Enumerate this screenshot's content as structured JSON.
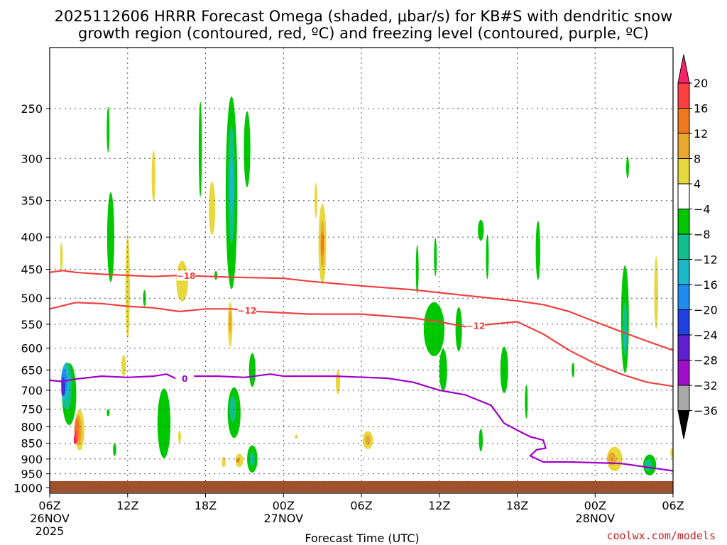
{
  "chart_data": {
    "type": "heatmap",
    "title_line1": "2025112606 HRRR Forecast Omega (shaded, μbar/s) for KB#S with dendritic snow",
    "title_line2": "growth region (contoured, red, ºC) and freezing level (contoured, purple, ºC)",
    "xlabel": "Forecast Time (UTC)",
    "credit": "coolwx.com/models",
    "x_ticks": [
      {
        "h": 0,
        "label": "06Z",
        "date": "26NOV",
        "year": "2025"
      },
      {
        "h": 6,
        "label": "12Z"
      },
      {
        "h": 12,
        "label": "18Z"
      },
      {
        "h": 18,
        "label": "00Z",
        "date": "27NOV"
      },
      {
        "h": 24,
        "label": "06Z"
      },
      {
        "h": 30,
        "label": "12Z"
      },
      {
        "h": 36,
        "label": "18Z"
      },
      {
        "h": 42,
        "label": "00Z",
        "date": "28NOV"
      },
      {
        "h": 48,
        "label": "06Z"
      }
    ],
    "xlim_hours": [
      0,
      48
    ],
    "y_ticks": [
      250,
      300,
      350,
      400,
      450,
      500,
      550,
      600,
      650,
      700,
      750,
      800,
      850,
      900,
      950,
      1000
    ],
    "ylim_hpa": [
      1020,
      200
    ],
    "colorbar": {
      "labels": [
        "20",
        "16",
        "12",
        "8",
        "4",
        "−4",
        "−8",
        "−12",
        "−16",
        "−20",
        "−24",
        "−28",
        "−32",
        "−36"
      ],
      "colors": [
        "#ff1f6b",
        "#ff4040",
        "#f07820",
        "#e8a830",
        "#e8d840",
        "#ffffff",
        "#00c800",
        "#10c08c",
        "#1ab8c8",
        "#1e8cf0",
        "#2040e0",
        "#6020d0",
        "#a010c8",
        "#a8a8a8",
        "#000000"
      ]
    },
    "shading": [
      {
        "c": "#00c800",
        "x": 1.5,
        "p": 710,
        "w": 1.1,
        "hp": 160
      },
      {
        "c": "#10c08c",
        "x": 1.3,
        "p": 690,
        "w": 0.8,
        "hp": 120
      },
      {
        "c": "#1ab8c8",
        "x": 1.2,
        "p": 680,
        "w": 0.6,
        "hp": 90
      },
      {
        "c": "#1e8cf0",
        "x": 1.1,
        "p": 680,
        "w": 0.45,
        "hp": 70
      },
      {
        "c": "#2040e0",
        "x": 1.05,
        "p": 690,
        "w": 0.3,
        "hp": 45
      },
      {
        "c": "#6020d0",
        "x": 1.0,
        "p": 700,
        "w": 0.2,
        "hp": 30
      },
      {
        "c": "#e8d840",
        "x": 2.3,
        "p": 810,
        "w": 0.75,
        "hp": 120
      },
      {
        "c": "#e8a830",
        "x": 2.2,
        "p": 810,
        "w": 0.55,
        "hp": 90
      },
      {
        "c": "#f07820",
        "x": 2.1,
        "p": 810,
        "w": 0.4,
        "hp": 70
      },
      {
        "c": "#ff4040",
        "x": 2.0,
        "p": 830,
        "w": 0.22,
        "hp": 45
      },
      {
        "c": "#ff1f6b",
        "x": 1.95,
        "p": 840,
        "w": 0.12,
        "hp": 25
      },
      {
        "c": "#e8d840",
        "x": 0.9,
        "p": 430,
        "w": 0.2,
        "hp": 45
      },
      {
        "c": "#00c800",
        "x": 4.7,
        "p": 400,
        "w": 0.55,
        "hp": 130
      },
      {
        "c": "#00c800",
        "x": 4.5,
        "p": 270,
        "w": 0.12,
        "hp": 45
      },
      {
        "c": "#e8d840",
        "x": 6.0,
        "p": 480,
        "w": 0.35,
        "hp": 180
      },
      {
        "c": "#e8d840",
        "x": 5.7,
        "p": 640,
        "w": 0.35,
        "hp": 50
      },
      {
        "c": "#00c800",
        "x": 4.5,
        "p": 760,
        "w": 0.15,
        "hp": 20
      },
      {
        "c": "#00c800",
        "x": 5.0,
        "p": 870,
        "w": 0.25,
        "hp": 40
      },
      {
        "c": "#00c800",
        "x": 7.3,
        "p": 500,
        "w": 0.08,
        "hp": 30
      },
      {
        "c": "#e8d840",
        "x": 8.0,
        "p": 320,
        "w": 0.3,
        "hp": 60
      },
      {
        "c": "#00c800",
        "x": 8.8,
        "p": 790,
        "w": 1.0,
        "hp": 200
      },
      {
        "c": "#e8d840",
        "x": 10.2,
        "p": 470,
        "w": 0.9,
        "hp": 70
      },
      {
        "c": "#e8d840",
        "x": 10.0,
        "p": 830,
        "w": 0.2,
        "hp": 40
      },
      {
        "c": "#00c800",
        "x": 11.6,
        "p": 290,
        "w": 0.25,
        "hp": 100
      },
      {
        "c": "#e8d840",
        "x": 12.5,
        "p": 360,
        "w": 0.5,
        "hp": 70
      },
      {
        "c": "#00c800",
        "x": 12.8,
        "p": 460,
        "w": 0.08,
        "hp": 15
      },
      {
        "c": "#00c800",
        "x": 14.0,
        "p": 340,
        "w": 0.9,
        "hp": 230
      },
      {
        "c": "#10c08c",
        "x": 14.0,
        "p": 330,
        "w": 0.5,
        "hp": 140
      },
      {
        "c": "#1ab8c8",
        "x": 14.0,
        "p": 330,
        "w": 0.25,
        "hp": 70
      },
      {
        "c": "#00c800",
        "x": 15.2,
        "p": 290,
        "w": 0.5,
        "hp": 80
      },
      {
        "c": "#e8d840",
        "x": 13.9,
        "p": 550,
        "w": 0.35,
        "hp": 90
      },
      {
        "c": "#e8a830",
        "x": 13.9,
        "p": 545,
        "w": 0.15,
        "hp": 45
      },
      {
        "c": "#00c800",
        "x": 14.2,
        "p": 760,
        "w": 1.0,
        "hp": 140
      },
      {
        "c": "#10c08c",
        "x": 14.1,
        "p": 750,
        "w": 0.5,
        "hp": 70
      },
      {
        "c": "#00c800",
        "x": 15.6,
        "p": 650,
        "w": 0.5,
        "hp": 80
      },
      {
        "c": "#00c800",
        "x": 15.6,
        "p": 900,
        "w": 0.8,
        "hp": 90
      },
      {
        "c": "#10c08c",
        "x": 15.6,
        "p": 900,
        "w": 0.4,
        "hp": 45
      },
      {
        "c": "#e8d840",
        "x": 13.4,
        "p": 910,
        "w": 0.3,
        "hp": 35
      },
      {
        "c": "#e8d840",
        "x": 14.6,
        "p": 905,
        "w": 0.6,
        "hp": 45
      },
      {
        "c": "#f07820",
        "x": 14.5,
        "p": 905,
        "w": 0.12,
        "hp": 15
      },
      {
        "c": "#e8d840",
        "x": 20.5,
        "p": 350,
        "w": 0.15,
        "hp": 45
      },
      {
        "c": "#e8d840",
        "x": 21.0,
        "p": 410,
        "w": 0.6,
        "hp": 120
      },
      {
        "c": "#e8a830",
        "x": 21.0,
        "p": 410,
        "w": 0.3,
        "hp": 70
      },
      {
        "c": "#f07820",
        "x": 21.0,
        "p": 410,
        "w": 0.13,
        "hp": 35
      },
      {
        "c": "#e8d840",
        "x": 22.2,
        "p": 680,
        "w": 0.35,
        "hp": 60
      },
      {
        "c": "#e8d840",
        "x": 19.0,
        "p": 830,
        "w": 0.08,
        "hp": 12
      },
      {
        "c": "#e8d840",
        "x": 24.5,
        "p": 840,
        "w": 0.8,
        "hp": 55
      },
      {
        "c": "#e8a830",
        "x": 24.5,
        "p": 840,
        "w": 0.4,
        "hp": 30
      },
      {
        "c": "#00c800",
        "x": 28.3,
        "p": 450,
        "w": 0.2,
        "hp": 80
      },
      {
        "c": "#00c800",
        "x": 29.6,
        "p": 560,
        "w": 1.6,
        "hp": 110
      },
      {
        "c": "#00c800",
        "x": 29.7,
        "p": 430,
        "w": 0.2,
        "hp": 60
      },
      {
        "c": "#00c800",
        "x": 30.3,
        "p": 650,
        "w": 0.6,
        "hp": 100
      },
      {
        "c": "#00c800",
        "x": 31.5,
        "p": 560,
        "w": 0.5,
        "hp": 90
      },
      {
        "c": "#00c800",
        "x": 33.2,
        "p": 390,
        "w": 0.45,
        "hp": 30
      },
      {
        "c": "#00c800",
        "x": 33.7,
        "p": 430,
        "w": 0.2,
        "hp": 70
      },
      {
        "c": "#00c800",
        "x": 33.2,
        "p": 840,
        "w": 0.3,
        "hp": 70
      },
      {
        "c": "#00c800",
        "x": 35.0,
        "p": 650,
        "w": 0.6,
        "hp": 110
      },
      {
        "c": "#00c800",
        "x": 36.7,
        "p": 730,
        "w": 0.2,
        "hp": 90
      },
      {
        "c": "#00c800",
        "x": 37.6,
        "p": 420,
        "w": 0.35,
        "hp": 90
      },
      {
        "c": "#00c800",
        "x": 40.3,
        "p": 650,
        "w": 0.12,
        "hp": 35
      },
      {
        "c": "#00c800",
        "x": 44.5,
        "p": 310,
        "w": 0.15,
        "hp": 25
      },
      {
        "c": "#00c800",
        "x": 44.3,
        "p": 540,
        "w": 0.6,
        "hp": 210
      },
      {
        "c": "#10c08c",
        "x": 44.3,
        "p": 560,
        "w": 0.35,
        "hp": 110
      },
      {
        "c": "#1ab8c8",
        "x": 44.3,
        "p": 580,
        "w": 0.15,
        "hp": 45
      },
      {
        "c": "#e8d840",
        "x": 46.7,
        "p": 490,
        "w": 0.3,
        "hp": 130
      },
      {
        "c": "#e8d840",
        "x": 43.5,
        "p": 900,
        "w": 1.2,
        "hp": 80
      },
      {
        "c": "#e8a830",
        "x": 43.3,
        "p": 900,
        "w": 0.6,
        "hp": 45
      },
      {
        "c": "#00c800",
        "x": 46.2,
        "p": 920,
        "w": 1.0,
        "hp": 70
      },
      {
        "c": "#10c08c",
        "x": 46.1,
        "p": 920,
        "w": 0.55,
        "hp": 40
      },
      {
        "c": "#e8d840",
        "x": 47.9,
        "p": 880,
        "w": 0.2,
        "hp": 30
      }
    ],
    "contours": [
      {
        "label": "−18",
        "color": "#f04040",
        "label_at": 10.5,
        "points": [
          [
            0,
            455
          ],
          [
            1,
            452
          ],
          [
            2,
            455
          ],
          [
            4,
            458
          ],
          [
            6,
            460
          ],
          [
            8,
            462
          ],
          [
            10,
            460
          ],
          [
            14,
            463
          ],
          [
            18,
            465
          ],
          [
            20,
            470
          ],
          [
            24,
            478
          ],
          [
            28,
            485
          ],
          [
            32,
            495
          ],
          [
            36,
            505
          ],
          [
            38,
            512
          ],
          [
            40,
            525
          ],
          [
            42,
            545
          ],
          [
            44,
            565
          ],
          [
            46,
            585
          ],
          [
            48,
            605
          ]
        ]
      },
      {
        "label": "−12",
        "color": "#f04040",
        "label_at": 15.2,
        "points": [
          [
            0,
            520
          ],
          [
            2,
            508
          ],
          [
            4,
            510
          ],
          [
            6,
            515
          ],
          [
            8,
            518
          ],
          [
            10,
            525
          ],
          [
            12,
            520
          ],
          [
            14,
            520
          ],
          [
            16,
            525
          ],
          [
            20,
            530
          ],
          [
            24,
            530
          ],
          [
            28,
            538
          ],
          [
            30,
            545
          ],
          [
            32,
            555
          ]
        ]
      },
      {
        "label": "−12",
        "color": "#f04040",
        "label_at": 32.8,
        "points": [
          [
            32,
            555
          ],
          [
            34,
            550
          ],
          [
            36,
            545
          ],
          [
            38,
            570
          ],
          [
            40,
            605
          ],
          [
            42,
            635
          ],
          [
            44,
            660
          ],
          [
            46,
            680
          ],
          [
            48,
            690
          ]
        ]
      },
      {
        "label": "0",
        "color": "#a000c8",
        "label_at": 10.4,
        "points": [
          [
            0,
            675
          ],
          [
            1,
            678
          ],
          [
            2,
            672
          ],
          [
            4,
            665
          ],
          [
            6,
            668
          ],
          [
            8,
            665
          ],
          [
            9,
            660
          ],
          [
            10,
            675
          ],
          [
            11,
            665
          ],
          [
            13,
            665
          ],
          [
            15,
            668
          ],
          [
            17,
            660
          ],
          [
            18,
            665
          ],
          [
            22,
            665
          ],
          [
            26,
            670
          ],
          [
            28,
            680
          ],
          [
            30,
            700
          ],
          [
            32,
            712
          ],
          [
            34,
            740
          ],
          [
            35,
            790
          ],
          [
            36,
            810
          ],
          [
            37,
            830
          ],
          [
            38,
            840
          ],
          [
            38.2,
            865
          ],
          [
            37.5,
            870
          ],
          [
            37,
            890
          ],
          [
            38,
            910
          ],
          [
            40,
            910
          ],
          [
            44,
            915
          ],
          [
            48,
            940
          ]
        ]
      }
    ]
  }
}
